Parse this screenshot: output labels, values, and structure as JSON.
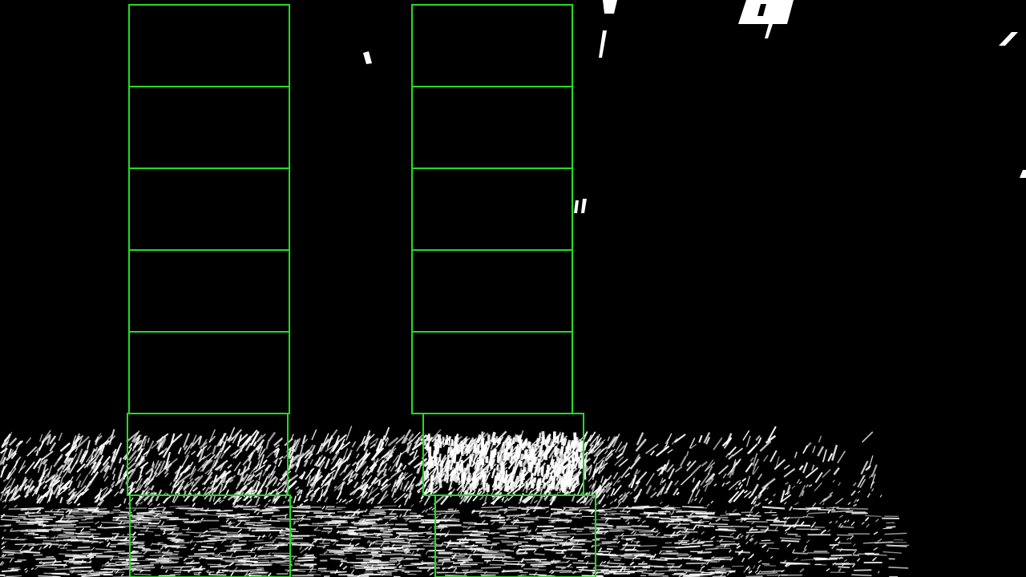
{
  "image": {
    "kind": "binary-thresholded-birdseye-lane-view",
    "background_color": "#000000",
    "foreground_color": "#ffffff"
  },
  "overlay": {
    "window_color": "#22dd22",
    "lanes": [
      {
        "name": "left-lane",
        "window_count": 7
      },
      {
        "name": "right-lane",
        "window_count": 7
      }
    ]
  }
}
